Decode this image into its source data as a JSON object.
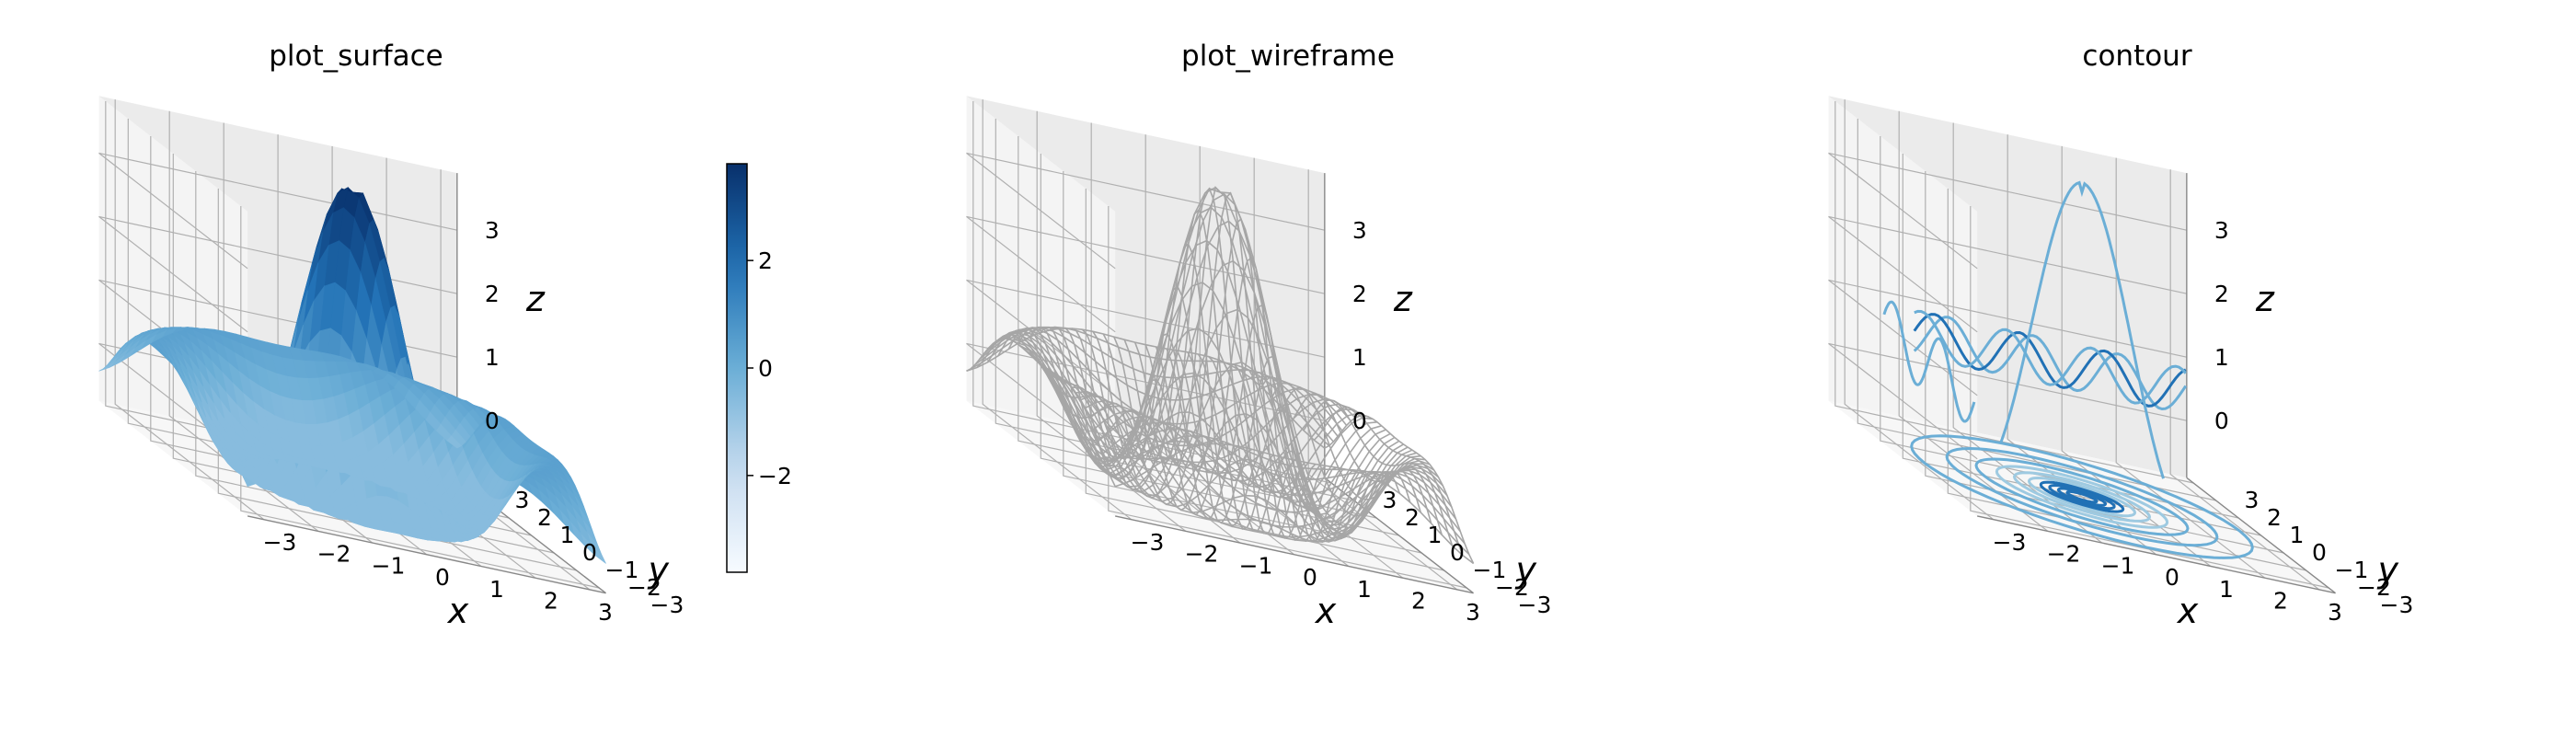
{
  "figure": {
    "panel_titles": [
      "plot_surface",
      "plot_wireframe",
      "contour"
    ]
  },
  "colors": {
    "surface_light": "#d6e6f4",
    "surface_mid": "#6baed6",
    "surface_dark": "#08306b",
    "wireframe": "#a6a6a6",
    "contour_light": "#9ecae1",
    "contour_mid": "#6baed6",
    "contour_dark": "#2171b5",
    "pane_fill": "#f2f2f2",
    "grid": "#b0b0b0"
  },
  "chart_data": [
    {
      "type": "surface",
      "title": "plot_surface",
      "xlabel": "x",
      "ylabel": "y",
      "zlabel": "z",
      "xticks": [
        "−3",
        "−2",
        "−1",
        "0",
        "1",
        "2",
        "3"
      ],
      "yticks": [
        "−3",
        "−2",
        "−1",
        "0",
        "1",
        "2",
        "3"
      ],
      "zticks": [
        "0",
        "1",
        "2",
        "3"
      ],
      "xlim": [
        -3.3,
        3.3
      ],
      "ylim": [
        -3.3,
        3.3
      ],
      "zlim": [
        -0.9,
        3.9
      ],
      "colorbar": {
        "ticks": [
          "−2",
          "0",
          "2"
        ],
        "range": [
          -3.8,
          3.8
        ],
        "cmap": "Blues"
      }
    },
    {
      "type": "wireframe",
      "title": "plot_wireframe",
      "xlabel": "x",
      "ylabel": "y",
      "zlabel": "z",
      "xticks": [
        "−3",
        "−2",
        "−1",
        "0",
        "1",
        "2",
        "3"
      ],
      "yticks": [
        "−3",
        "−2",
        "−1",
        "0",
        "1",
        "2",
        "3"
      ],
      "zticks": [
        "0",
        "1",
        "2",
        "3"
      ],
      "xlim": [
        -3.3,
        3.3
      ],
      "ylim": [
        -3.3,
        3.3
      ],
      "zlim": [
        -0.9,
        3.9
      ]
    },
    {
      "type": "contour",
      "title": "contour",
      "xlabel": "x",
      "ylabel": "y",
      "zlabel": "z",
      "xticks": [
        "−3",
        "−2",
        "−1",
        "0",
        "1",
        "2",
        "3"
      ],
      "yticks": [
        "−3",
        "−2",
        "−1",
        "0",
        "1",
        "2",
        "3"
      ],
      "zticks": [
        "0",
        "1",
        "2",
        "3"
      ],
      "xlim": [
        -3.3,
        3.3
      ],
      "ylim": [
        -3.3,
        3.3
      ],
      "zlim": [
        -0.9,
        3.9
      ]
    }
  ]
}
